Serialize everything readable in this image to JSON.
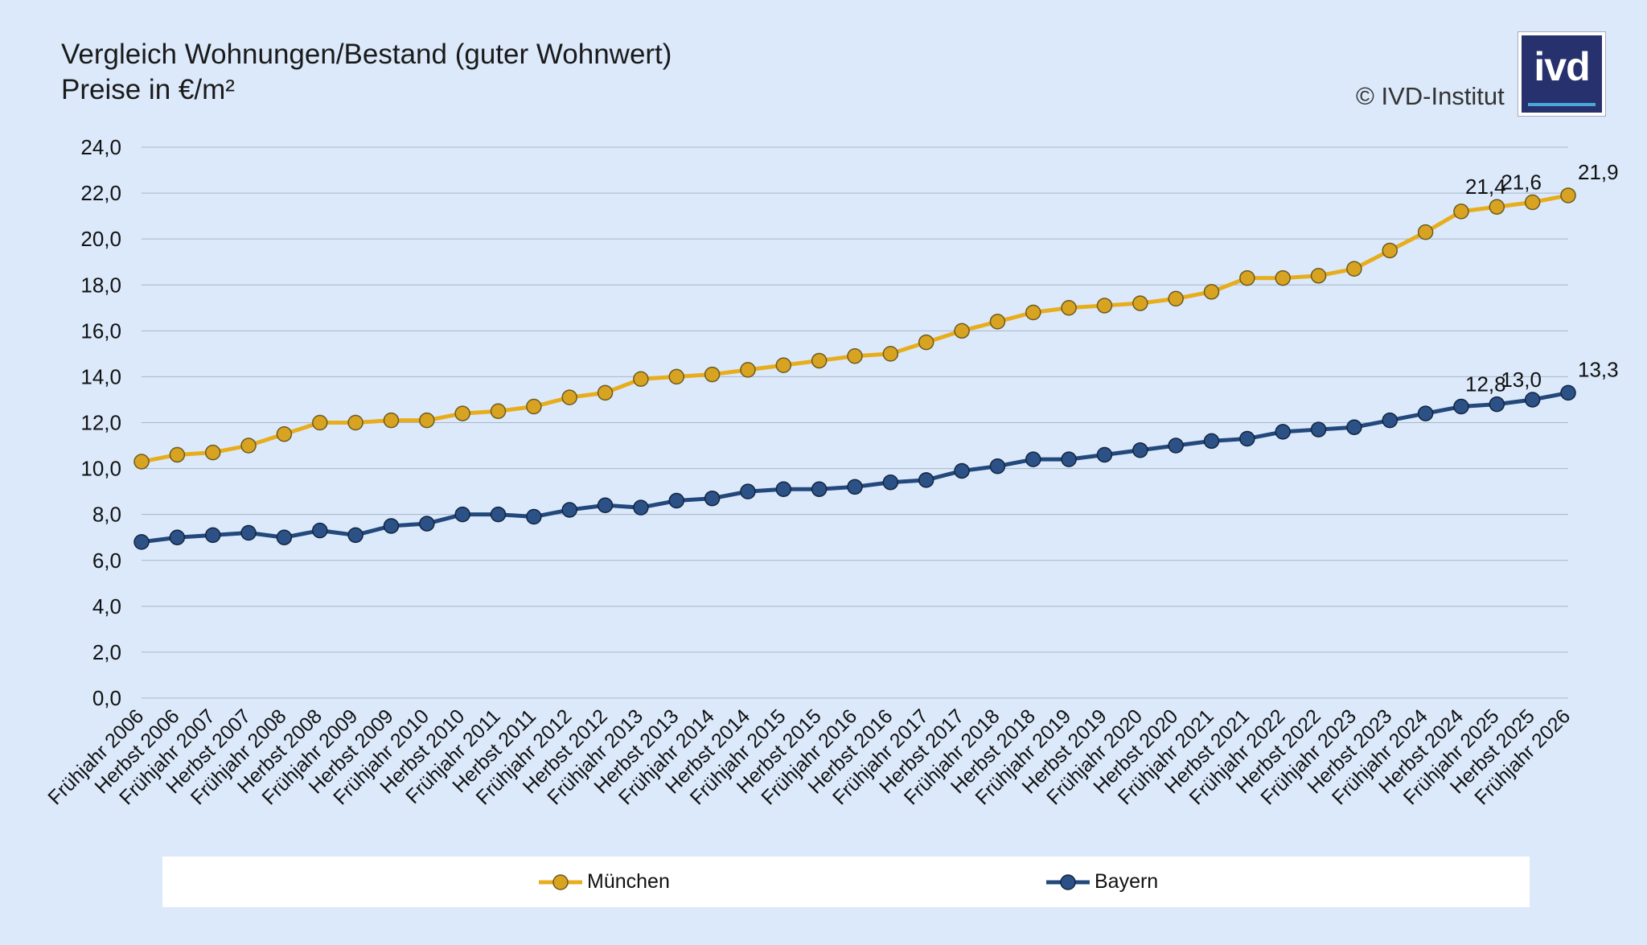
{
  "title": {
    "line1": "Vergleich Wohnungen/Bestand (guter Wohnwert)",
    "line2": "Preise in €/m²"
  },
  "copyright": "© IVD-Institut",
  "logo": {
    "text": "ivd",
    "color": "#27316e"
  },
  "chart_data": {
    "type": "line",
    "ylim": [
      0,
      24
    ],
    "yticks": [
      "0,0",
      "2,0",
      "4,0",
      "6,0",
      "8,0",
      "10,0",
      "12,0",
      "14,0",
      "16,0",
      "18,0",
      "20,0",
      "22,0",
      "24,0"
    ],
    "grid": true,
    "legend_position": "bottom",
    "categories": [
      "Frühjahr 2006",
      "Herbst 2006",
      "Frühjahr 2007",
      "Herbst 2007",
      "Frühjahr 2008",
      "Herbst 2008",
      "Frühjahr 2009",
      "Herbst 2009",
      "Frühjahr 2010",
      "Herbst 2010",
      "Frühjahr 2011",
      "Herbst 2011",
      "Frühjahr 2012",
      "Herbst 2012",
      "Frühjahr 2013",
      "Herbst 2013",
      "Frühjahr 2014",
      "Herbst 2014",
      "Frühjahr 2015",
      "Herbst 2015",
      "Frühjahr 2016",
      "Herbst 2016",
      "Frühjahr 2017",
      "Herbst 2017",
      "Frühjahr 2018",
      "Herbst 2018",
      "Frühjahr 2019",
      "Herbst 2019",
      "Frühjahr 2020",
      "Herbst 2020",
      "Frühjahr 2021",
      "Herbst 2021",
      "Frühjahr 2022",
      "Herbst 2022",
      "Frühjahr 2023",
      "Herbst 2023",
      "Frühjahr 2024",
      "Herbst 2024",
      "Frühjahr 2025",
      "Herbst 2025",
      "Frühjahr 2026"
    ],
    "series": [
      {
        "name": "München",
        "color": "#e8ad1c",
        "marker_color": "#d9a322",
        "values": [
          10.3,
          10.6,
          10.7,
          11.0,
          11.5,
          12.0,
          12.0,
          12.1,
          12.1,
          12.4,
          12.5,
          12.7,
          13.1,
          13.3,
          13.9,
          14.0,
          14.1,
          14.3,
          14.5,
          14.7,
          14.9,
          15.0,
          15.5,
          16.0,
          16.4,
          16.8,
          17.0,
          17.1,
          17.2,
          17.4,
          17.7,
          18.3,
          18.3,
          18.4,
          18.7,
          19.5,
          20.3,
          21.2,
          21.4,
          21.6,
          21.9
        ],
        "data_labels": [
          {
            "index": 38,
            "text": "21,4"
          },
          {
            "index": 39,
            "text": "21,6"
          },
          {
            "index": 40,
            "text": "21,9"
          }
        ]
      },
      {
        "name": "Bayern",
        "color": "#23487c",
        "marker_color": "#2b5186",
        "values": [
          6.8,
          7.0,
          7.1,
          7.2,
          7.0,
          7.3,
          7.1,
          7.5,
          7.6,
          8.0,
          8.0,
          7.9,
          8.2,
          8.4,
          8.3,
          8.6,
          8.7,
          9.0,
          9.1,
          9.1,
          9.2,
          9.4,
          9.5,
          9.9,
          10.1,
          10.4,
          10.4,
          10.6,
          10.8,
          11.0,
          11.2,
          11.3,
          11.6,
          11.7,
          11.8,
          12.1,
          12.4,
          12.7,
          12.8,
          13.0,
          13.3
        ],
        "data_labels": [
          {
            "index": 38,
            "text": "12,8"
          },
          {
            "index": 39,
            "text": "13,0"
          },
          {
            "index": 40,
            "text": "13,3"
          }
        ]
      }
    ]
  }
}
